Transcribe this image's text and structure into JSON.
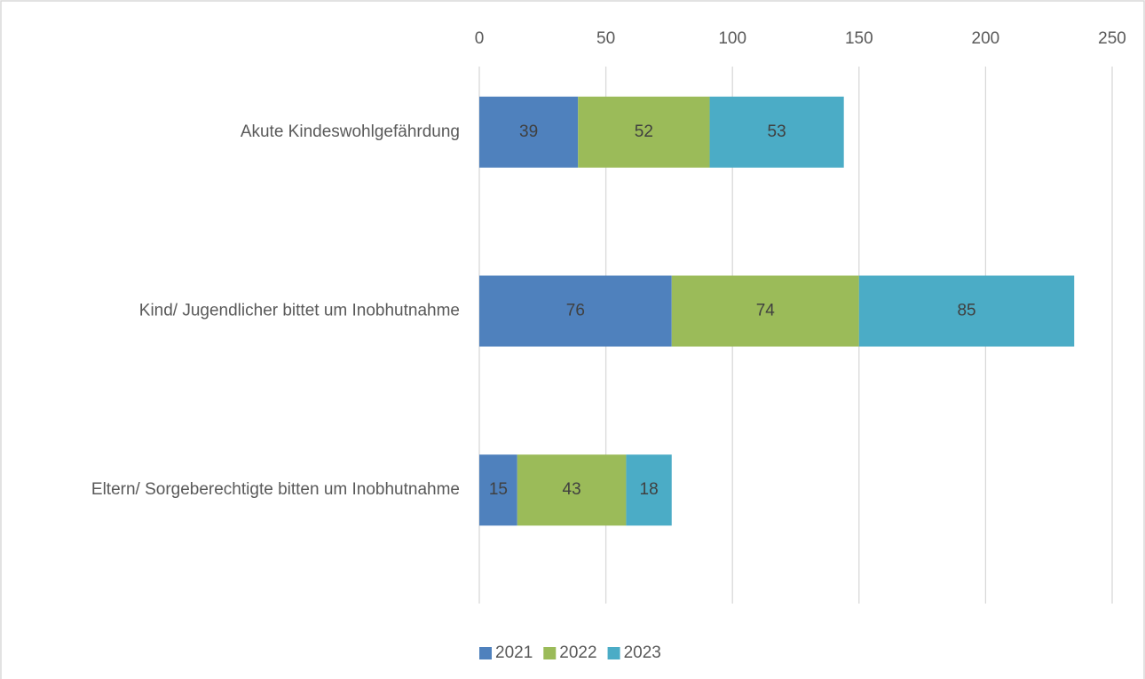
{
  "chart_data": {
    "type": "bar",
    "orientation": "horizontal",
    "stacked": true,
    "categories": [
      "Akute Kindeswohlgefährdung",
      "Kind/ Jugendlicher bittet um Inobhutnahme",
      "Eltern/ Sorgeberechtigte bitten um Inobhutnahme"
    ],
    "series": [
      {
        "name": "2021",
        "color": "#4f81bd",
        "values": [
          39,
          76,
          15
        ]
      },
      {
        "name": "2022",
        "color": "#9bbb59",
        "values": [
          52,
          74,
          43
        ]
      },
      {
        "name": "2023",
        "color": "#4bacc6",
        "values": [
          53,
          85,
          18
        ]
      }
    ],
    "xlim": [
      0,
      250
    ],
    "xticks": [
      0,
      50,
      100,
      150,
      200,
      250
    ],
    "grid": true,
    "legend": "bottom",
    "data_labels": true
  }
}
